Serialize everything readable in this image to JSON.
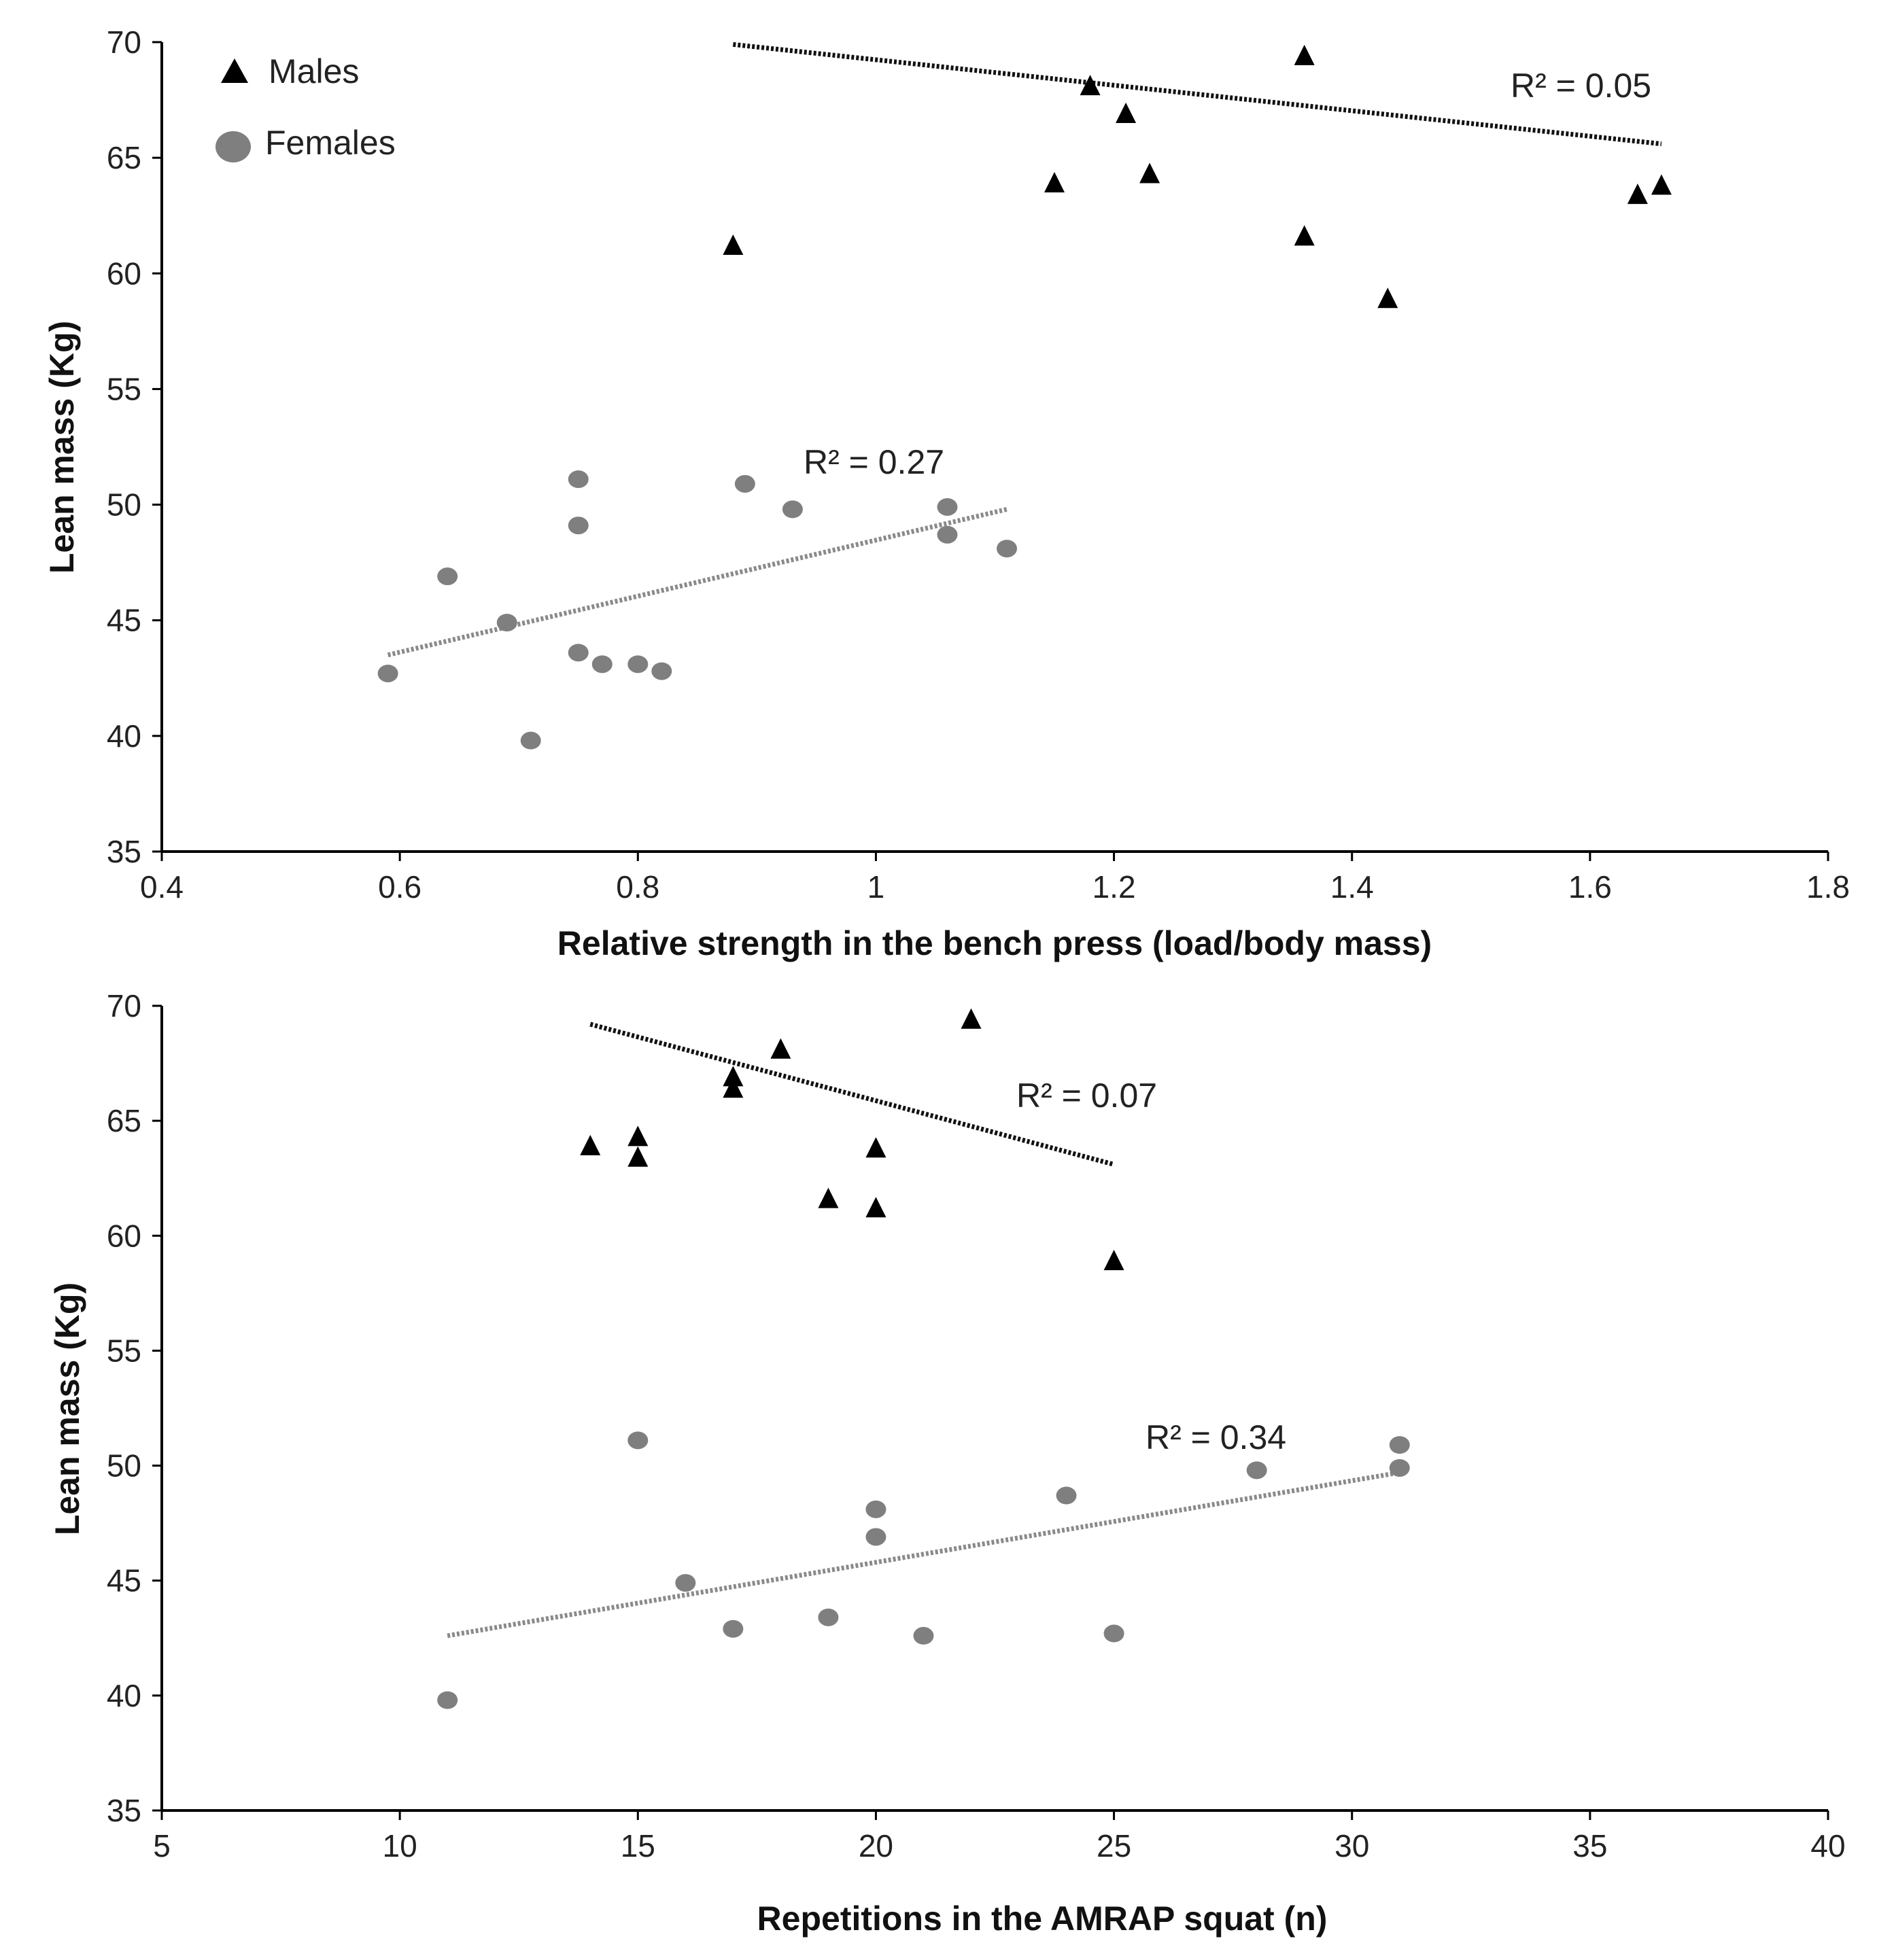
{
  "chart_data": [
    {
      "type": "scatter",
      "title": "",
      "xlabel": "Relative strength in the bench press (load/body mass)",
      "ylabel": "Lean mass (Kg)",
      "xlim": [
        0.4,
        1.8
      ],
      "ylim": [
        35,
        70
      ],
      "xticks": [
        "0.4",
        "0.6",
        "0.8",
        "1",
        "1.2",
        "1.4",
        "1.6",
        "1.8"
      ],
      "yticks": [
        "35",
        "40",
        "45",
        "50",
        "55",
        "60",
        "65",
        "70"
      ],
      "grid": false,
      "legend": [
        {
          "name": "Males",
          "marker": "triangle",
          "color": "#000000"
        },
        {
          "name": "Females",
          "marker": "circle",
          "color": "#7f7f7f"
        }
      ],
      "series": [
        {
          "name": "Males",
          "marker": "triangle",
          "color": "#000000",
          "x": [
            0.88,
            1.15,
            1.18,
            1.21,
            1.23,
            1.36,
            1.36,
            1.43,
            1.64,
            1.66
          ],
          "y": [
            61.2,
            63.9,
            68.1,
            66.9,
            64.3,
            69.4,
            61.6,
            58.9,
            63.4,
            63.8
          ],
          "trend": {
            "x": [
              0.88,
              1.66
            ],
            "y": [
              69.9,
              65.6
            ],
            "r2_label": "R² = 0.05"
          }
        },
        {
          "name": "Females",
          "marker": "circle",
          "color": "#7f7f7f",
          "x": [
            0.59,
            0.64,
            0.69,
            0.71,
            0.75,
            0.75,
            0.75,
            0.77,
            0.8,
            0.82,
            0.89,
            0.93,
            1.06,
            1.06,
            1.11
          ],
          "y": [
            42.7,
            46.9,
            44.9,
            39.8,
            51.1,
            49.1,
            43.6,
            43.1,
            43.1,
            42.8,
            50.9,
            49.8,
            49.9,
            48.7,
            48.1
          ],
          "trend": {
            "x": [
              0.59,
              1.11
            ],
            "y": [
              43.5,
              49.8
            ],
            "r2_label": "R² = 0.27"
          }
        }
      ]
    },
    {
      "type": "scatter",
      "title": "",
      "xlabel": "Repetitions in the AMRAP squat (n)",
      "ylabel": "Lean mass (Kg)",
      "xlim": [
        5,
        40
      ],
      "ylim": [
        35,
        70
      ],
      "xticks": [
        "5",
        "10",
        "15",
        "20",
        "25",
        "30",
        "35",
        "40"
      ],
      "yticks": [
        "35",
        "40",
        "45",
        "50",
        "55",
        "60",
        "65",
        "70"
      ],
      "grid": false,
      "series": [
        {
          "name": "Males",
          "marker": "triangle",
          "color": "#000000",
          "x": [
            14,
            15,
            15,
            17,
            17,
            18,
            19,
            20,
            20,
            22,
            25
          ],
          "y": [
            63.9,
            64.3,
            63.4,
            66.9,
            66.4,
            68.1,
            61.6,
            63.8,
            61.2,
            69.4,
            58.9
          ],
          "trend": {
            "x": [
              14,
              25
            ],
            "y": [
              69.2,
              63.1
            ],
            "r2_label": "R² = 0.07"
          }
        },
        {
          "name": "Females",
          "marker": "circle",
          "color": "#7f7f7f",
          "x": [
            11,
            15,
            16,
            17,
            19,
            20,
            20,
            21,
            24,
            25,
            28,
            31,
            31
          ],
          "y": [
            39.8,
            51.1,
            44.9,
            42.9,
            43.4,
            48.1,
            46.9,
            42.6,
            48.7,
            42.7,
            49.8,
            50.9,
            49.9
          ],
          "trend": {
            "x": [
              11,
              31
            ],
            "y": [
              42.6,
              49.7
            ],
            "r2_label": "R² = 0.34"
          }
        }
      ]
    }
  ]
}
